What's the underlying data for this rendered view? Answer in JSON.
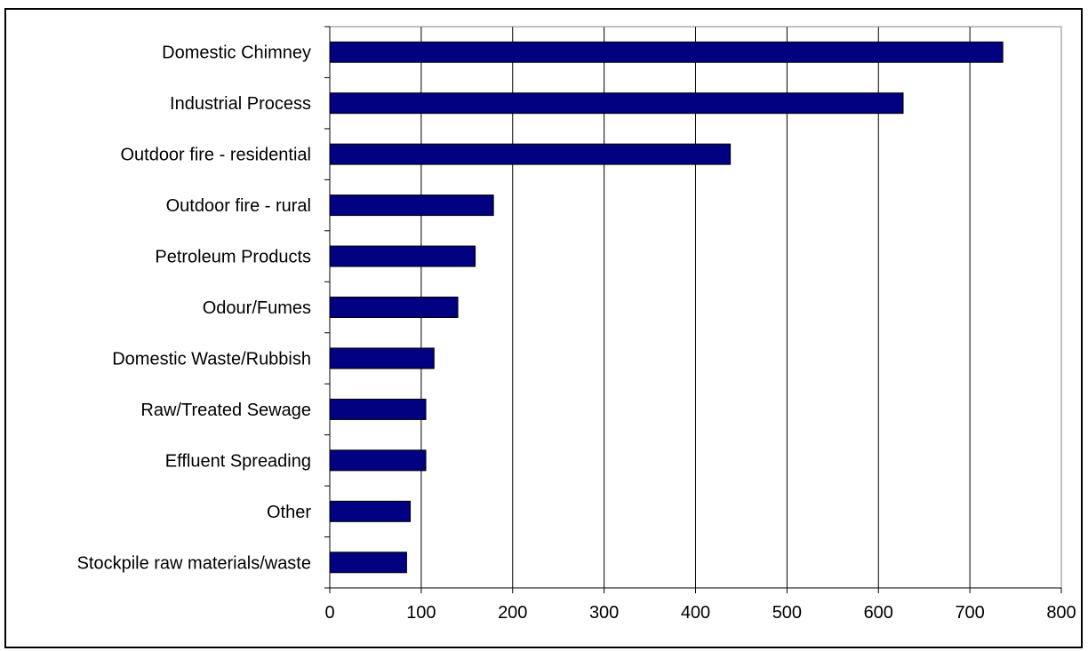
{
  "chart_data": {
    "type": "bar",
    "orientation": "horizontal",
    "title": "",
    "xlabel": "",
    "ylabel": "",
    "categories": [
      "Domestic Chimney",
      "Industrial Process",
      "Outdoor fire - residential",
      "Outdoor fire - rural",
      "Petroleum Products",
      "Odour/Fumes",
      "Domestic Waste/Rubbish",
      "Raw/Treated Sewage",
      "Effluent Spreading",
      "Other",
      "Stockpile raw materials/waste"
    ],
    "values": [
      736,
      627,
      438,
      179,
      159,
      140,
      114,
      105,
      105,
      88,
      84
    ],
    "xlim": [
      0,
      800
    ],
    "x_ticks": [
      0,
      100,
      200,
      300,
      400,
      500,
      600,
      700,
      800
    ],
    "x_tick_labels": [
      "0",
      "100",
      "200",
      "300",
      "400",
      "500",
      "600",
      "700",
      "800"
    ],
    "grid": "vertical major gridlines",
    "legend": "none",
    "colors": {
      "bar_fill": "#000080",
      "bar_stroke": "#000000",
      "grid": "#000000",
      "plot_border": "#808080"
    }
  }
}
